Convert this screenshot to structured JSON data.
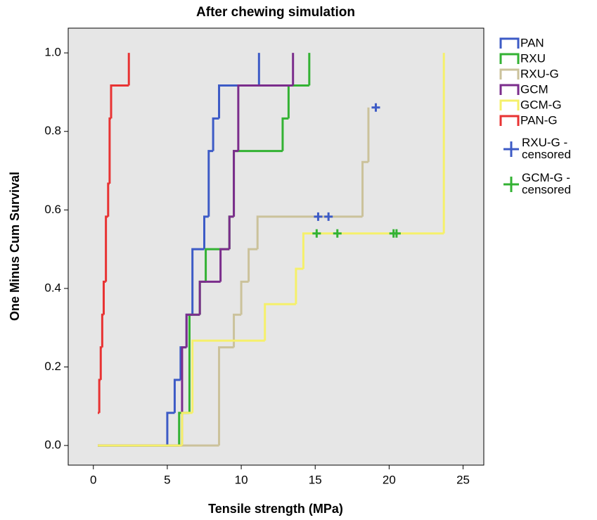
{
  "chart_data": {
    "type": "step",
    "title": "After chewing simulation",
    "x_label": "Tensile strength (MPa)",
    "y_label": "One Minus Cum Survival",
    "xlim": [
      -1.7,
      26.4
    ],
    "ylim": [
      -0.05,
      1.063
    ],
    "xticks": [
      0,
      5,
      10,
      15,
      20,
      25
    ],
    "yticks": [
      {
        "value": 0,
        "label": "0.0"
      },
      {
        "value": 0.2,
        "label": "0.2"
      },
      {
        "value": 0.4,
        "label": "0.4"
      },
      {
        "value": 0.6,
        "label": "0.6"
      },
      {
        "value": 0.8,
        "label": "0.8"
      },
      {
        "value": 1,
        "label": "1.0"
      }
    ],
    "background": "#e6e6e6",
    "series": [
      {
        "name": "PAN",
        "color": "#3d5bc6",
        "marker": "step",
        "x": [
          0.3,
          5.0,
          5.5,
          5.9,
          6.3,
          6.7,
          7.5,
          7.8,
          8.1,
          8.5,
          11.2
        ],
        "values": [
          0,
          0.083,
          0.167,
          0.25,
          0.333,
          0.5,
          0.583,
          0.75,
          0.833,
          0.917,
          1.0
        ]
      },
      {
        "name": "RXU",
        "color": "#33b233",
        "marker": "step",
        "x": [
          0.3,
          5.8,
          6.5,
          7.2,
          7.6,
          9.2,
          9.5,
          12.8,
          13.2,
          14.6
        ],
        "values": [
          0,
          0.083,
          0.333,
          0.417,
          0.5,
          0.583,
          0.75,
          0.833,
          0.917,
          1.0
        ]
      },
      {
        "name": "RXU-G",
        "color": "#cbc29b",
        "marker": "step",
        "x": [
          0.3,
          8.5,
          9.5,
          10.0,
          10.5,
          11.1,
          18.2,
          18.6
        ],
        "values": [
          0,
          0.25,
          0.333,
          0.417,
          0.5,
          0.583,
          0.722,
          0.861
        ]
      },
      {
        "name": "GCM",
        "color": "#7b2d8c",
        "marker": "step",
        "x": [
          0.3,
          6.0,
          6.3,
          7.2,
          8.6,
          9.2,
          9.5,
          9.8,
          13.5
        ],
        "values": [
          0,
          0.25,
          0.333,
          0.417,
          0.5,
          0.583,
          0.75,
          0.917,
          1.0
        ]
      },
      {
        "name": "GCM-G",
        "color": "#f5f06a",
        "marker": "step",
        "x": [
          0.3,
          6.0,
          6.7,
          11.6,
          13.7,
          14.2,
          23.7
        ],
        "values": [
          0,
          0.083,
          0.267,
          0.36,
          0.45,
          0.54,
          1.0
        ]
      },
      {
        "name": "PAN-G",
        "color": "#e83333",
        "marker": "step",
        "x": [
          0.3,
          0.4,
          0.5,
          0.6,
          0.7,
          0.85,
          1.0,
          1.1,
          1.2,
          2.4
        ],
        "values": [
          0.083,
          0.167,
          0.25,
          0.333,
          0.417,
          0.583,
          0.667,
          0.833,
          0.917,
          1.0
        ]
      },
      {
        "name": "RXU-G - censored",
        "color": "#3d5bc6",
        "marker": "plus",
        "x": [
          15.2,
          15.9,
          19.1
        ],
        "values": [
          0.583,
          0.583,
          0.861
        ]
      },
      {
        "name": "GCM-G - censored",
        "color": "#33b233",
        "marker": "plus",
        "x": [
          15.1,
          16.5,
          20.3,
          20.5
        ],
        "values": [
          0.54,
          0.54,
          0.54,
          0.54
        ]
      }
    ]
  }
}
